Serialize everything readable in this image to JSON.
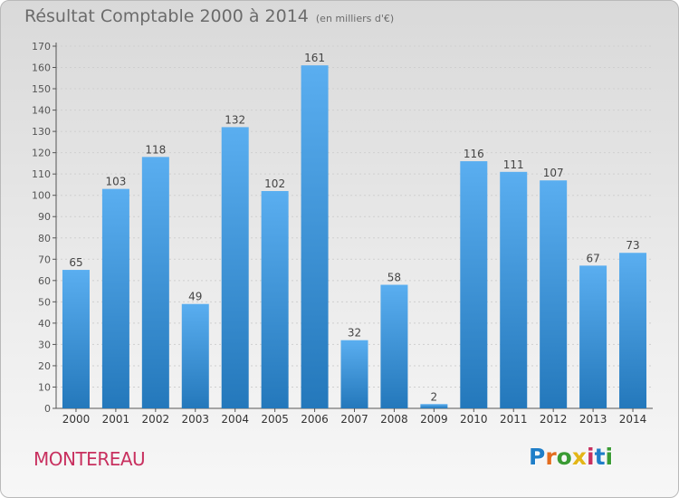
{
  "header": {
    "title": "Résultat Comptable 2000 à 2014",
    "unit": "(en milliers d'€)"
  },
  "footer": {
    "commune": "MONTEREAU",
    "logo_letters": [
      {
        "char": "P",
        "color": "#1f7ec8"
      },
      {
        "char": "r",
        "color": "#e36d1f"
      },
      {
        "char": "o",
        "color": "#3a9b34"
      },
      {
        "char": "x",
        "color": "#e3b617"
      },
      {
        "char": "i",
        "color": "#c8305f"
      },
      {
        "char": "t",
        "color": "#1f7ec8"
      },
      {
        "char": "i",
        "color": "#3a9b34"
      }
    ]
  },
  "chart_data": {
    "type": "bar",
    "categories": [
      "2000",
      "2001",
      "2002",
      "2003",
      "2004",
      "2005",
      "2006",
      "2007",
      "2008",
      "2009",
      "2010",
      "2011",
      "2012",
      "2013",
      "2014"
    ],
    "values": [
      65,
      103,
      118,
      49,
      132,
      102,
      161,
      32,
      58,
      2,
      116,
      111,
      107,
      67,
      73
    ],
    "title": "Résultat Comptable 2000 à 2014",
    "xlabel": "",
    "ylabel": "",
    "ylim": [
      0,
      170
    ],
    "yticks": [
      0,
      10,
      20,
      30,
      40,
      50,
      60,
      70,
      80,
      90,
      100,
      110,
      120,
      130,
      140,
      150,
      160,
      170
    ],
    "grid": true,
    "bar_color_top": "#5aaef0",
    "bar_color_bottom": "#2478bb"
  }
}
